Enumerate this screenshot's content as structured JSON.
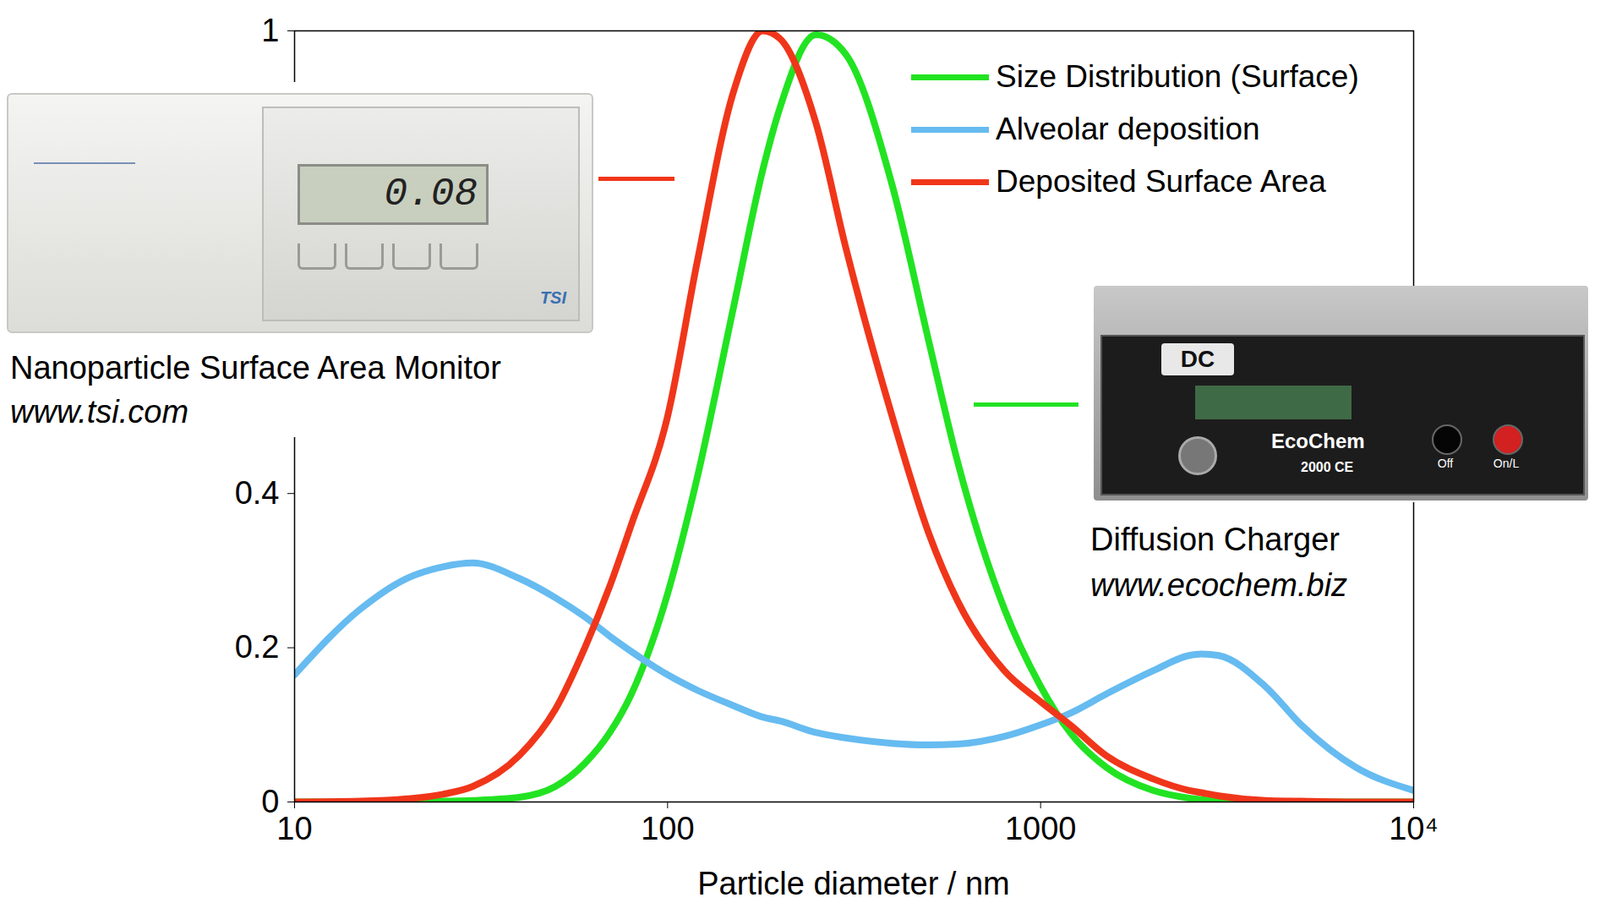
{
  "chart_data": {
    "type": "line",
    "xlabel": "Particle diameter / nm",
    "log": "x",
    "grid": false,
    "legend": "top-right",
    "xlim": [
      10,
      10000
    ],
    "xticks": [
      10,
      100,
      1000,
      {
        "value": 10000,
        "label": "10⁴"
      }
    ],
    "ylim": [
      0,
      1
    ],
    "yticks": [
      0,
      0.2,
      0.4,
      1
    ],
    "x": [
      10,
      15,
      20,
      25,
      30,
      40,
      50,
      60,
      70,
      80,
      100,
      120,
      150,
      180,
      200,
      250,
      300,
      400,
      500,
      600,
      800,
      1000,
      1200,
      1500,
      2000,
      2500,
      2700,
      3000,
      4000,
      5000,
      7000,
      10000
    ],
    "series": [
      {
        "name": "Size Distribution (Surface)",
        "color": "#22e322",
        "values": [
          0,
          0,
          0,
          0.001,
          0.002,
          0.006,
          0.02,
          0.05,
          0.09,
          0.14,
          0.27,
          0.42,
          0.64,
          0.82,
          0.9,
          0.995,
          0.97,
          0.8,
          0.6,
          0.44,
          0.25,
          0.15,
          0.09,
          0.045,
          0.015,
          0.005,
          0.003,
          0.002,
          0,
          0,
          0,
          0
        ]
      },
      {
        "name": "Alveolar deposition",
        "color": "#66bbf0",
        "values": [
          0.165,
          0.25,
          0.29,
          0.305,
          0.31,
          0.29,
          0.265,
          0.24,
          0.215,
          0.195,
          0.165,
          0.145,
          0.125,
          0.11,
          0.105,
          0.09,
          0.083,
          0.076,
          0.074,
          0.075,
          0.085,
          0.1,
          0.115,
          0.14,
          0.17,
          0.19,
          0.192,
          0.19,
          0.15,
          0.1,
          0.045,
          0.015
        ]
      },
      {
        "name": "Deposited Surface Area",
        "color": "#f0361a",
        "values": [
          0,
          0.001,
          0.004,
          0.01,
          0.02,
          0.06,
          0.12,
          0.2,
          0.28,
          0.36,
          0.5,
          0.7,
          0.92,
          1,
          0.99,
          0.88,
          0.72,
          0.5,
          0.35,
          0.26,
          0.17,
          0.13,
          0.1,
          0.06,
          0.03,
          0.015,
          0.012,
          0.008,
          0.002,
          0.001,
          0,
          0
        ]
      }
    ],
    "annotations": [
      {
        "caption": "Nanoparticle Surface Area Monitor",
        "url": "www.tsi.com",
        "display": "0.08",
        "badge": "TSI",
        "series": "Deposited Surface Area"
      },
      {
        "caption": "Diffusion Charger",
        "url": "www.ecochem.biz",
        "badge": "DC",
        "brand": "EcoChem",
        "model": "2000 CE",
        "buttons": [
          "Off",
          "On/L"
        ],
        "series": "Size Distribution (Surface)"
      }
    ]
  }
}
